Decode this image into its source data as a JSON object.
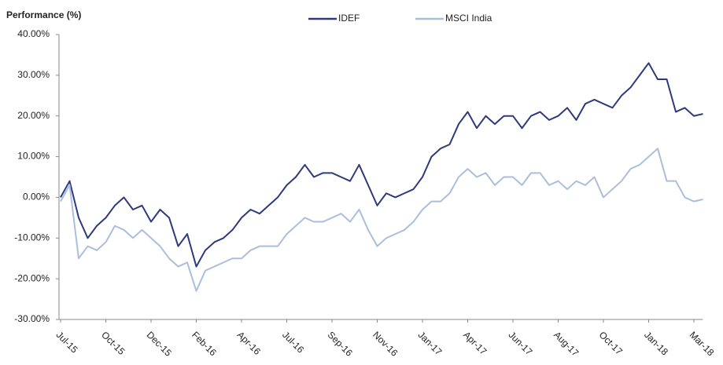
{
  "chart_data": {
    "type": "line",
    "title": "Performance (%)",
    "categories": [
      "Jul-15",
      null,
      null,
      null,
      null,
      "Oct-15",
      null,
      null,
      null,
      null,
      "Dec-15",
      null,
      null,
      null,
      null,
      "Feb-16",
      null,
      null,
      null,
      null,
      "Apr-16",
      null,
      null,
      null,
      null,
      "Jul-16",
      null,
      null,
      null,
      null,
      "Sep-16",
      null,
      null,
      null,
      null,
      "Nov-16",
      null,
      null,
      null,
      null,
      "Jan-17",
      null,
      null,
      null,
      null,
      "Apr-17",
      null,
      null,
      null,
      null,
      "Jun-17",
      null,
      null,
      null,
      null,
      "Aug-17",
      null,
      null,
      null,
      null,
      "Oct-17",
      null,
      null,
      null,
      null,
      "Jan-18",
      null,
      null,
      null,
      null,
      "Mar-18",
      null
    ],
    "series": [
      {
        "name": "IDEF",
        "color": "#2e3a7c",
        "values": [
          0,
          4,
          -5,
          -10,
          -7,
          -5,
          -2,
          0,
          -3,
          -2,
          -6,
          -3,
          -5,
          -12,
          -9,
          -17,
          -13,
          -11,
          -10,
          -8,
          -5,
          -3,
          -4,
          -2,
          0,
          3,
          5,
          8,
          5,
          6,
          6,
          5,
          4,
          8,
          3,
          -2,
          1,
          0,
          1,
          2,
          5,
          10,
          12,
          13,
          18,
          21,
          17,
          20,
          18,
          20,
          20,
          17,
          20,
          21,
          19,
          20,
          22,
          19,
          23,
          24,
          23,
          22,
          25,
          27,
          30,
          33,
          29,
          29,
          21,
          22,
          20,
          20.5
        ]
      },
      {
        "name": "MSCI India",
        "color": "#a9bfdc",
        "values": [
          -1,
          3,
          -15,
          -12,
          -13,
          -11,
          -7,
          -8,
          -10,
          -8,
          -10,
          -12,
          -15,
          -17,
          -16,
          -23,
          -18,
          -17,
          -16,
          -15,
          -15,
          -13,
          -12,
          -12,
          -12,
          -9,
          -7,
          -5,
          -6,
          -6,
          -5,
          -4,
          -6,
          -3,
          -8,
          -12,
          -10,
          -9,
          -8,
          -6,
          -3,
          -1,
          -1,
          1,
          5,
          7,
          5,
          6,
          3,
          5,
          5,
          3,
          6,
          6,
          3,
          4,
          2,
          4,
          3,
          5,
          0,
          2,
          4,
          7,
          8,
          10,
          12,
          4,
          4,
          0,
          -1,
          -0.5
        ]
      }
    ],
    "ylim": [
      -30,
      40
    ],
    "yticks": [
      {
        "value": -30,
        "label": "-30.00%"
      },
      {
        "value": -20,
        "label": "-20.00%"
      },
      {
        "value": -10,
        "label": "-10.00%"
      },
      {
        "value": 0,
        "label": "0.00%"
      },
      {
        "value": 10,
        "label": "10.00%"
      },
      {
        "value": 20,
        "label": "20.00%"
      },
      {
        "value": 30,
        "label": "30.00%"
      },
      {
        "value": 40,
        "label": "40.00%"
      }
    ],
    "grid": false,
    "legend": "top"
  }
}
